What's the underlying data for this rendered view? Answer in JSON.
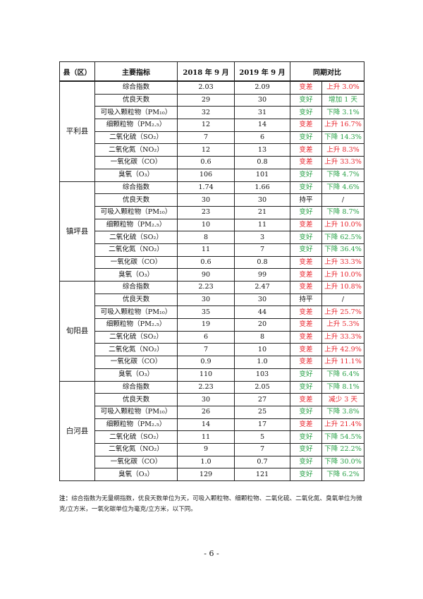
{
  "table": {
    "headers": [
      "县（区）",
      "主要指标",
      "2018 年 9 月",
      "2019 年 9 月",
      "同期对比"
    ],
    "groups": [
      {
        "county": "平利县",
        "rows": [
          {
            "indicator": "综合指数",
            "y2018": "2.03",
            "y2019": "2.09",
            "trend": "变差",
            "change": "上升 3.0%",
            "color": "#e8242c"
          },
          {
            "indicator": "优良天数",
            "y2018": "29",
            "y2019": "30",
            "trend": "变好",
            "change": "增加 1 天",
            "color": "#27a046"
          },
          {
            "indicator": "可吸入颗粒物（PM₁₀）",
            "y2018": "32",
            "y2019": "31",
            "trend": "变好",
            "change": "下降 3.1%",
            "color": "#27a046"
          },
          {
            "indicator": "细颗粒物（PM₂.₅）",
            "y2018": "12",
            "y2019": "14",
            "trend": "变差",
            "change": "上升 16.7%",
            "color": "#e8242c"
          },
          {
            "indicator": "二氧化硫（SO₂）",
            "y2018": "7",
            "y2019": "6",
            "trend": "变好",
            "change": "下降 14.3%",
            "color": "#27a046"
          },
          {
            "indicator": "二氧化氮（NO₂）",
            "y2018": "12",
            "y2019": "13",
            "trend": "变差",
            "change": "上升 8.3%",
            "color": "#e8242c"
          },
          {
            "indicator": "一氧化碳（CO）",
            "y2018": "0.6",
            "y2019": "0.8",
            "trend": "变差",
            "change": "上升 33.3%",
            "color": "#e8242c"
          },
          {
            "indicator": "臭氧（O₃）",
            "y2018": "106",
            "y2019": "101",
            "trend": "变好",
            "change": "下降 4.7%",
            "color": "#27a046"
          }
        ]
      },
      {
        "county": "镇坪县",
        "rows": [
          {
            "indicator": "综合指数",
            "y2018": "1.74",
            "y2019": "1.66",
            "trend": "变好",
            "change": "下降 4.6%",
            "color": "#27a046"
          },
          {
            "indicator": "优良天数",
            "y2018": "30",
            "y2019": "30",
            "trend": "持平",
            "change": "/",
            "color": "#111111"
          },
          {
            "indicator": "可吸入颗粒物（PM₁₀）",
            "y2018": "23",
            "y2019": "21",
            "trend": "变好",
            "change": "下降 8.7%",
            "color": "#27a046"
          },
          {
            "indicator": "细颗粒物（PM₂.₅）",
            "y2018": "10",
            "y2019": "11",
            "trend": "变差",
            "change": "上升 10.0%",
            "color": "#e8242c"
          },
          {
            "indicator": "二氧化硫（SO₂）",
            "y2018": "8",
            "y2019": "3",
            "trend": "变好",
            "change": "下降 62.5%",
            "color": "#27a046"
          },
          {
            "indicator": "二氧化氮（NO₂）",
            "y2018": "11",
            "y2019": "7",
            "trend": "变好",
            "change": "下降 36.4%",
            "color": "#27a046"
          },
          {
            "indicator": "一氧化碳（CO）",
            "y2018": "0.6",
            "y2019": "0.8",
            "trend": "变差",
            "change": "上升 33.3%",
            "color": "#e8242c"
          },
          {
            "indicator": "臭氧（O₃）",
            "y2018": "90",
            "y2019": "99",
            "trend": "变差",
            "change": "上升 10.0%",
            "color": "#e8242c"
          }
        ]
      },
      {
        "county": "旬阳县",
        "rows": [
          {
            "indicator": "综合指数",
            "y2018": "2.23",
            "y2019": "2.47",
            "trend": "变差",
            "change": "上升 10.8%",
            "color": "#e8242c"
          },
          {
            "indicator": "优良天数",
            "y2018": "30",
            "y2019": "30",
            "trend": "持平",
            "change": "/",
            "color": "#111111"
          },
          {
            "indicator": "可吸入颗粒物（PM₁₀）",
            "y2018": "35",
            "y2019": "44",
            "trend": "变差",
            "change": "上升 25.7%",
            "color": "#e8242c"
          },
          {
            "indicator": "细颗粒物（PM₂.₅）",
            "y2018": "19",
            "y2019": "20",
            "trend": "变差",
            "change": "上升 5.3%",
            "color": "#e8242c"
          },
          {
            "indicator": "二氧化硫（SO₂）",
            "y2018": "6",
            "y2019": "8",
            "trend": "变差",
            "change": "上升 33.3%",
            "color": "#e8242c"
          },
          {
            "indicator": "二氧化氮（NO₂）",
            "y2018": "7",
            "y2019": "10",
            "trend": "变差",
            "change": "上升 42.9%",
            "color": "#e8242c"
          },
          {
            "indicator": "一氧化碳（CO）",
            "y2018": "0.9",
            "y2019": "1.0",
            "trend": "变差",
            "change": "上升 11.1%",
            "color": "#e8242c"
          },
          {
            "indicator": "臭氧（O₃）",
            "y2018": "110",
            "y2019": "103",
            "trend": "变好",
            "change": "下降 6.4%",
            "color": "#27a046"
          }
        ]
      },
      {
        "county": "白河县",
        "rows": [
          {
            "indicator": "综合指数",
            "y2018": "2.23",
            "y2019": "2.05",
            "trend": "变好",
            "change": "下降 8.1%",
            "color": "#27a046"
          },
          {
            "indicator": "优良天数",
            "y2018": "30",
            "y2019": "27",
            "trend": "变差",
            "change": "减少 3 天",
            "color": "#e8242c"
          },
          {
            "indicator": "可吸入颗粒物（PM₁₀）",
            "y2018": "26",
            "y2019": "25",
            "trend": "变好",
            "change": "下降 3.8%",
            "color": "#27a046"
          },
          {
            "indicator": "细颗粒物（PM₂.₅）",
            "y2018": "14",
            "y2019": "17",
            "trend": "变差",
            "change": "上升 21.4%",
            "color": "#e8242c"
          },
          {
            "indicator": "二氧化硫（SO₂）",
            "y2018": "11",
            "y2019": "5",
            "trend": "变好",
            "change": "下降 54.5%",
            "color": "#27a046"
          },
          {
            "indicator": "二氧化氮（NO₂）",
            "y2018": "9",
            "y2019": "7",
            "trend": "变好",
            "change": "下降 22.2%",
            "color": "#27a046"
          },
          {
            "indicator": "一氧化碳（CO）",
            "y2018": "1.0",
            "y2019": "0.7",
            "trend": "变好",
            "change": "下降 30.0%",
            "color": "#27a046"
          },
          {
            "indicator": "臭氧（O₃）",
            "y2018": "129",
            "y2019": "121",
            "trend": "变好",
            "change": "下降 6.2%",
            "color": "#27a046"
          }
        ]
      }
    ]
  },
  "note": {
    "label": "注：",
    "text": "综合指数为无量纲指数，优良天数单位为天，可吸入颗粒物、细颗粒物、二氧化硫、二氧化氮、臭氧单位为微克/立方米，一氧化碳单位为毫克/立方米，以下同。"
  },
  "page_number": "- 6 -"
}
